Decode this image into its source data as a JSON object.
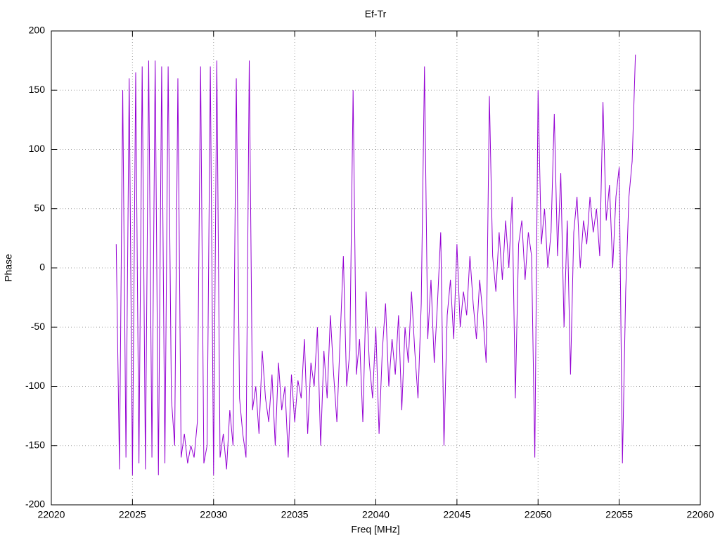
{
  "chart_data": {
    "type": "line",
    "title": "Ef-Tr",
    "xlabel": "Freq [MHz]",
    "ylabel": "Phase",
    "color": "#9400d3",
    "grid": true,
    "xlim": [
      22020,
      22060
    ],
    "xticks": [
      22020,
      22025,
      22030,
      22035,
      22040,
      22045,
      22050,
      22055,
      22060
    ],
    "ylim": [
      -200,
      200
    ],
    "yticks": [
      -200,
      -150,
      -100,
      -50,
      0,
      50,
      100,
      150,
      200
    ],
    "x": [
      22024,
      22024.2,
      22024.4,
      22024.6,
      22024.8,
      22025,
      22025.2,
      22025.4,
      22025.6,
      22025.8,
      22026,
      22026.2,
      22026.4,
      22026.6,
      22026.8,
      22027,
      22027.2,
      22027.4,
      22027.6,
      22027.8,
      22028,
      22028.2,
      22028.4,
      22028.6,
      22028.8,
      22029,
      22029.2,
      22029.4,
      22029.6,
      22029.8,
      22030,
      22030.2,
      22030.4,
      22030.6,
      22030.8,
      22031,
      22031.2,
      22031.4,
      22031.6,
      22031.8,
      22032,
      22032.2,
      22032.4,
      22032.6,
      22032.8,
      22033,
      22033.2,
      22033.4,
      22033.6,
      22033.8,
      22034,
      22034.2,
      22034.4,
      22034.6,
      22034.8,
      22035,
      22035.2,
      22035.4,
      22035.6,
      22035.8,
      22036,
      22036.2,
      22036.4,
      22036.6,
      22036.8,
      22037,
      22037.2,
      22037.4,
      22037.6,
      22037.8,
      22038,
      22038.2,
      22038.4,
      22038.6,
      22038.8,
      22039,
      22039.2,
      22039.4,
      22039.6,
      22039.8,
      22040,
      22040.2,
      22040.4,
      22040.6,
      22040.8,
      22041,
      22041.2,
      22041.4,
      22041.6,
      22041.8,
      22042,
      22042.2,
      22042.4,
      22042.6,
      22042.8,
      22043,
      22043.2,
      22043.4,
      22043.6,
      22043.8,
      22044,
      22044.2,
      22044.4,
      22044.6,
      22044.8,
      22045,
      22045.2,
      22045.4,
      22045.6,
      22045.8,
      22046,
      22046.2,
      22046.4,
      22046.6,
      22046.8,
      22047,
      22047.2,
      22047.4,
      22047.6,
      22047.8,
      22048,
      22048.2,
      22048.4,
      22048.6,
      22048.8,
      22049,
      22049.2,
      22049.4,
      22049.6,
      22049.8,
      22050,
      22050.2,
      22050.4,
      22050.6,
      22050.8,
      22051,
      22051.2,
      22051.4,
      22051.6,
      22051.8,
      22052,
      22052.2,
      22052.4,
      22052.6,
      22052.8,
      22053,
      22053.2,
      22053.4,
      22053.6,
      22053.8,
      22054,
      22054.2,
      22054.4,
      22054.6,
      22054.8,
      22055,
      22055.2,
      22055.4,
      22055.6,
      22055.8,
      22056
    ],
    "values": [
      20,
      -170,
      150,
      -160,
      160,
      -175,
      165,
      -165,
      170,
      -170,
      175,
      -160,
      175,
      -175,
      170,
      -165,
      170,
      -110,
      -150,
      160,
      -160,
      -140,
      -165,
      -150,
      -160,
      -130,
      170,
      -165,
      -150,
      170,
      -175,
      175,
      -160,
      -140,
      -170,
      -120,
      -150,
      160,
      -110,
      -140,
      -160,
      175,
      -120,
      -100,
      -140,
      -70,
      -110,
      -130,
      -90,
      -150,
      -80,
      -120,
      -100,
      -160,
      -90,
      -130,
      -95,
      -110,
      -60,
      -140,
      -80,
      -100,
      -50,
      -150,
      -70,
      -110,
      -40,
      -90,
      -130,
      -60,
      10,
      -100,
      -70,
      150,
      -90,
      -60,
      -130,
      -20,
      -80,
      -110,
      -50,
      -140,
      -70,
      -30,
      -100,
      -60,
      -90,
      -40,
      -120,
      -50,
      -80,
      -20,
      -70,
      -110,
      -30,
      170,
      -60,
      -10,
      -80,
      -30,
      30,
      -150,
      -40,
      -10,
      -60,
      20,
      -50,
      -20,
      -40,
      10,
      -30,
      -60,
      -10,
      -40,
      -80,
      145,
      10,
      -20,
      30,
      -10,
      40,
      0,
      60,
      -110,
      20,
      40,
      -10,
      30,
      10,
      -160,
      150,
      20,
      50,
      0,
      30,
      130,
      10,
      80,
      -50,
      40,
      -90,
      30,
      60,
      0,
      40,
      20,
      60,
      30,
      50,
      10,
      140,
      40,
      70,
      0,
      60,
      85,
      -165,
      -20,
      60,
      90,
      180
    ]
  }
}
